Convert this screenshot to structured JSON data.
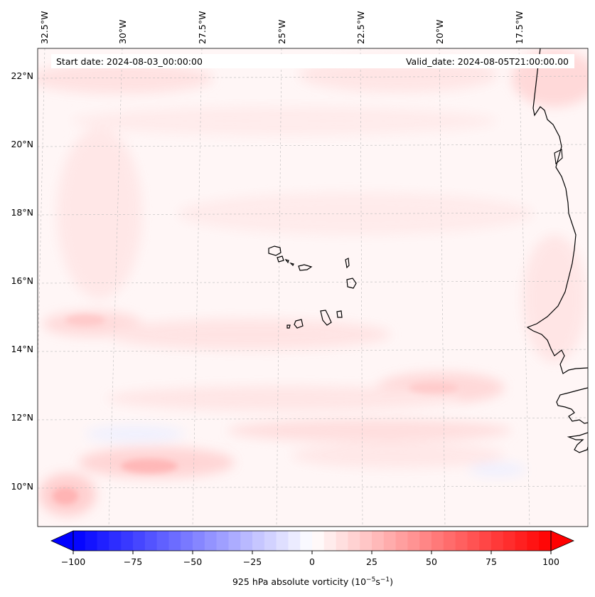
{
  "header": {
    "start_date": "Start date: 2024-08-03_00:00:00",
    "valid_date": "Valid_date: 2024-08-05T21:00:00.00"
  },
  "map": {
    "longitude_labels": [
      "32.5°W",
      "30°W",
      "27.5°W",
      "25°W",
      "22.5°W",
      "20°W",
      "17.5°W"
    ],
    "latitude_labels": [
      "22°N",
      "20°N",
      "18°N",
      "16°N",
      "14°N",
      "12°N",
      "10°N"
    ],
    "gridlines": true,
    "field_color_positive": "#ff0000",
    "field_color_negative": "#0000ff"
  },
  "colorbar": {
    "ticks": [
      "−100",
      "−75",
      "−50",
      "−25",
      "0",
      "25",
      "50",
      "75",
      "100"
    ],
    "label_main": "925 hPa absolute vorticity (10",
    "label_exp1": "−5",
    "label_mid": "s",
    "label_exp2": "−1",
    "label_close": ")",
    "range": [
      -100,
      100
    ],
    "extend": "both"
  }
}
